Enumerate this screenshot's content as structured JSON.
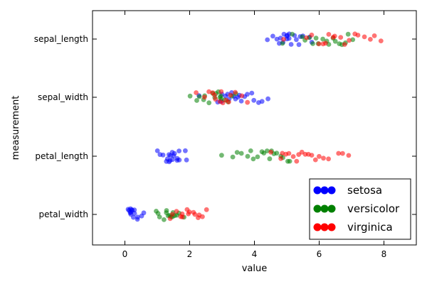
{
  "chart_data": {
    "type": "scatter",
    "title": "",
    "xlabel": "value",
    "ylabel": "measurement",
    "xlim": [
      -1,
      9
    ],
    "xticks": [
      0,
      2,
      4,
      6,
      8
    ],
    "xtick_labels": [
      "0",
      "2",
      "4",
      "6",
      "8"
    ],
    "categories": [
      "sepal_length",
      "sepal_width",
      "petal_length",
      "petal_width"
    ],
    "grid": false,
    "legend_position": "bottom-right",
    "series": [
      {
        "name": "setosa",
        "color": "#0000ff",
        "values": {
          "sepal_length": [
            4.4,
            4.6,
            4.7,
            4.8,
            4.8,
            4.9,
            4.9,
            5.0,
            5.0,
            5.0,
            5.1,
            5.1,
            5.1,
            5.2,
            5.3,
            5.4,
            5.4,
            5.5,
            5.7,
            5.8
          ],
          "sepal_width": [
            2.3,
            2.9,
            3.0,
            3.0,
            3.1,
            3.2,
            3.2,
            3.3,
            3.4,
            3.4,
            3.5,
            3.5,
            3.6,
            3.7,
            3.8,
            3.9,
            4.0,
            4.1,
            4.2,
            4.4
          ],
          "petal_length": [
            1.0,
            1.1,
            1.2,
            1.3,
            1.3,
            1.4,
            1.4,
            1.4,
            1.4,
            1.5,
            1.5,
            1.5,
            1.5,
            1.6,
            1.6,
            1.7,
            1.7,
            1.9,
            1.9
          ],
          "petal_width": [
            0.1,
            0.1,
            0.2,
            0.2,
            0.2,
            0.2,
            0.2,
            0.2,
            0.3,
            0.3,
            0.3,
            0.4,
            0.4,
            0.5,
            0.6
          ]
        }
      },
      {
        "name": "versicolor",
        "color": "#008000",
        "values": {
          "sepal_length": [
            4.9,
            5.2,
            5.5,
            5.6,
            5.7,
            5.8,
            5.9,
            6.0,
            6.1,
            6.2,
            6.3,
            6.4,
            6.5,
            6.6,
            6.7,
            6.8,
            6.9,
            7.0
          ],
          "sepal_width": [
            2.0,
            2.2,
            2.3,
            2.4,
            2.5,
            2.6,
            2.7,
            2.8,
            2.8,
            2.9,
            2.9,
            3.0,
            3.0,
            3.1,
            3.2,
            3.3,
            3.4
          ],
          "petal_length": [
            3.0,
            3.3,
            3.5,
            3.6,
            3.8,
            3.9,
            4.0,
            4.1,
            4.2,
            4.3,
            4.4,
            4.5,
            4.5,
            4.6,
            4.7,
            4.8,
            4.9,
            5.0,
            5.1
          ],
          "petal_width": [
            1.0,
            1.0,
            1.1,
            1.2,
            1.3,
            1.3,
            1.3,
            1.4,
            1.4,
            1.5,
            1.5,
            1.5,
            1.6,
            1.7,
            1.8
          ]
        }
      },
      {
        "name": "virginica",
        "color": "#ff0000",
        "values": {
          "sepal_length": [
            4.9,
            5.6,
            5.8,
            6.0,
            6.1,
            6.2,
            6.3,
            6.4,
            6.5,
            6.7,
            6.8,
            6.9,
            7.1,
            7.2,
            7.4,
            7.6,
            7.7,
            7.9
          ],
          "sepal_width": [
            2.2,
            2.5,
            2.6,
            2.7,
            2.8,
            2.8,
            2.9,
            3.0,
            3.0,
            3.1,
            3.2,
            3.3,
            3.4,
            3.6,
            3.8
          ],
          "petal_length": [
            4.5,
            4.8,
            4.9,
            5.0,
            5.1,
            5.2,
            5.3,
            5.4,
            5.5,
            5.6,
            5.7,
            5.8,
            5.9,
            6.0,
            6.1,
            6.3,
            6.6,
            6.7,
            6.9
          ],
          "petal_width": [
            1.4,
            1.5,
            1.6,
            1.7,
            1.8,
            1.8,
            1.9,
            2.0,
            2.0,
            2.1,
            2.2,
            2.3,
            2.3,
            2.4,
            2.5
          ]
        }
      }
    ]
  }
}
